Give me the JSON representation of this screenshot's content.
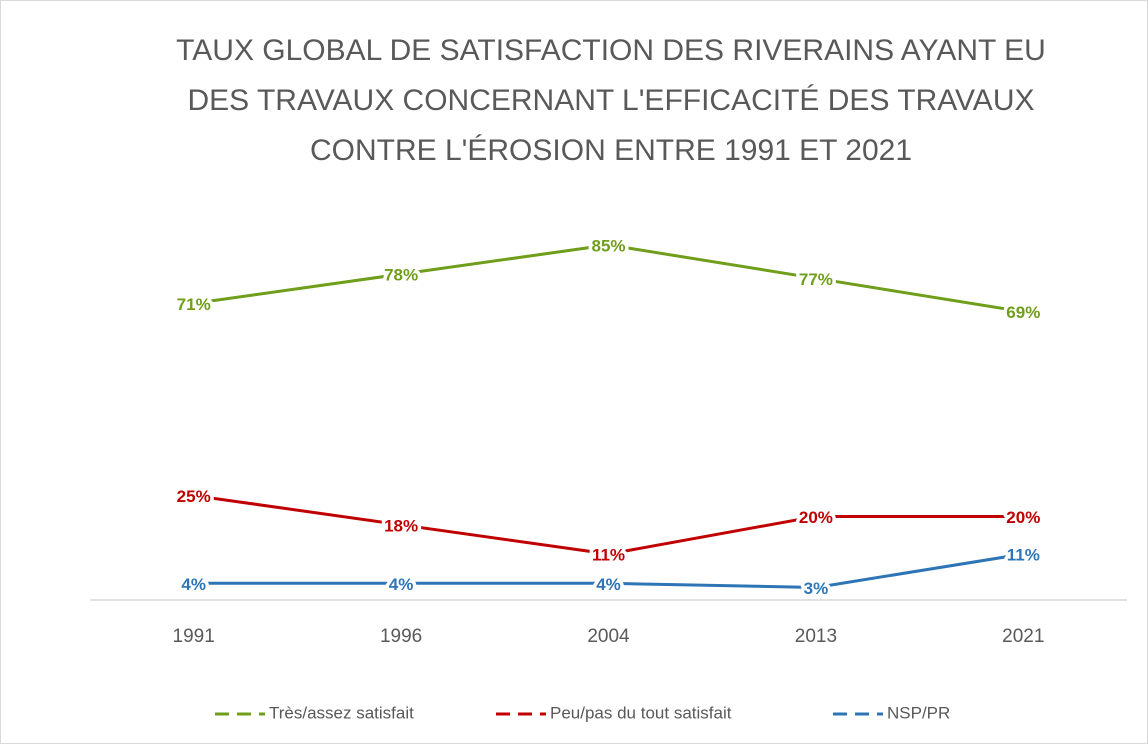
{
  "chart_data": {
    "type": "line",
    "title": [
      "TAUX GLOBAL DE SATISFACTION DES RIVERAINS AYANT EU",
      "DES TRAVAUX CONCERNANT L'EFFICACITÉ DES TRAVAUX",
      "CONTRE L'ÉROSION ENTRE 1991 ET 2021"
    ],
    "categories": [
      "1991",
      "1996",
      "2004",
      "2013",
      "2021"
    ],
    "ylim": [
      0,
      90
    ],
    "legend": "bottom",
    "series": [
      {
        "name": "Très/assez satisfait",
        "color": "#6f9e1a",
        "values": [
          71,
          78,
          85,
          77,
          69
        ],
        "value_labels": [
          "71%",
          "78%",
          "85%",
          "77%",
          "69%"
        ]
      },
      {
        "name": "Peu/pas du tout satisfait",
        "color": "#c00000",
        "values": [
          25,
          18,
          11,
          20,
          20
        ],
        "value_labels": [
          "25%",
          "18%",
          "11%",
          "20%",
          "20%"
        ]
      },
      {
        "name": "NSP/PR",
        "color": "#2e75b6",
        "values": [
          4,
          4,
          4,
          3,
          11
        ],
        "value_labels": [
          "4%",
          "4%",
          "4%",
          "3%",
          "11%"
        ]
      }
    ]
  }
}
